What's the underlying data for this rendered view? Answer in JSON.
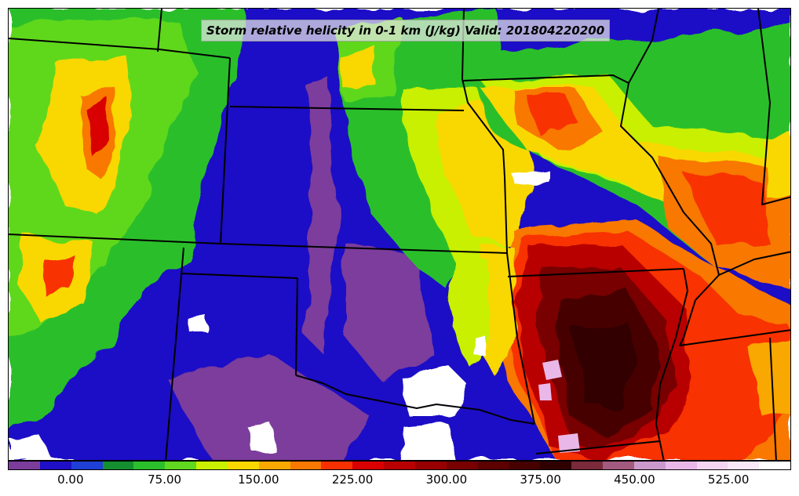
{
  "title": "Storm relative helicity in 0-1 km (J/kg) Valid: 201804220200",
  "colorbar": {
    "min": -50,
    "max": 575,
    "step": 25,
    "colors": [
      "#7b3c9c",
      "#1f0fc6",
      "#1f3fd6",
      "#138f2f",
      "#2bbf2b",
      "#5fd81f",
      "#c8f000",
      "#f8d800",
      "#f8a800",
      "#f87800",
      "#f83000",
      "#d80000",
      "#b80000",
      "#980000",
      "#780000",
      "#5c0000",
      "#460000",
      "#300000",
      "#7a2a3a",
      "#a4597f",
      "#cc99cc",
      "#eab8e8",
      "#f4d4f0",
      "#f8e8f8",
      "#ffffff"
    ],
    "tick_labels": [
      "0.00",
      "75.00",
      "150.00",
      "225.00",
      "300.00",
      "375.00",
      "450.00",
      "525.00"
    ],
    "tick_values": [
      0,
      75,
      150,
      225,
      300,
      375,
      450,
      525
    ]
  },
  "map": {
    "boundary_color": "#000000"
  }
}
